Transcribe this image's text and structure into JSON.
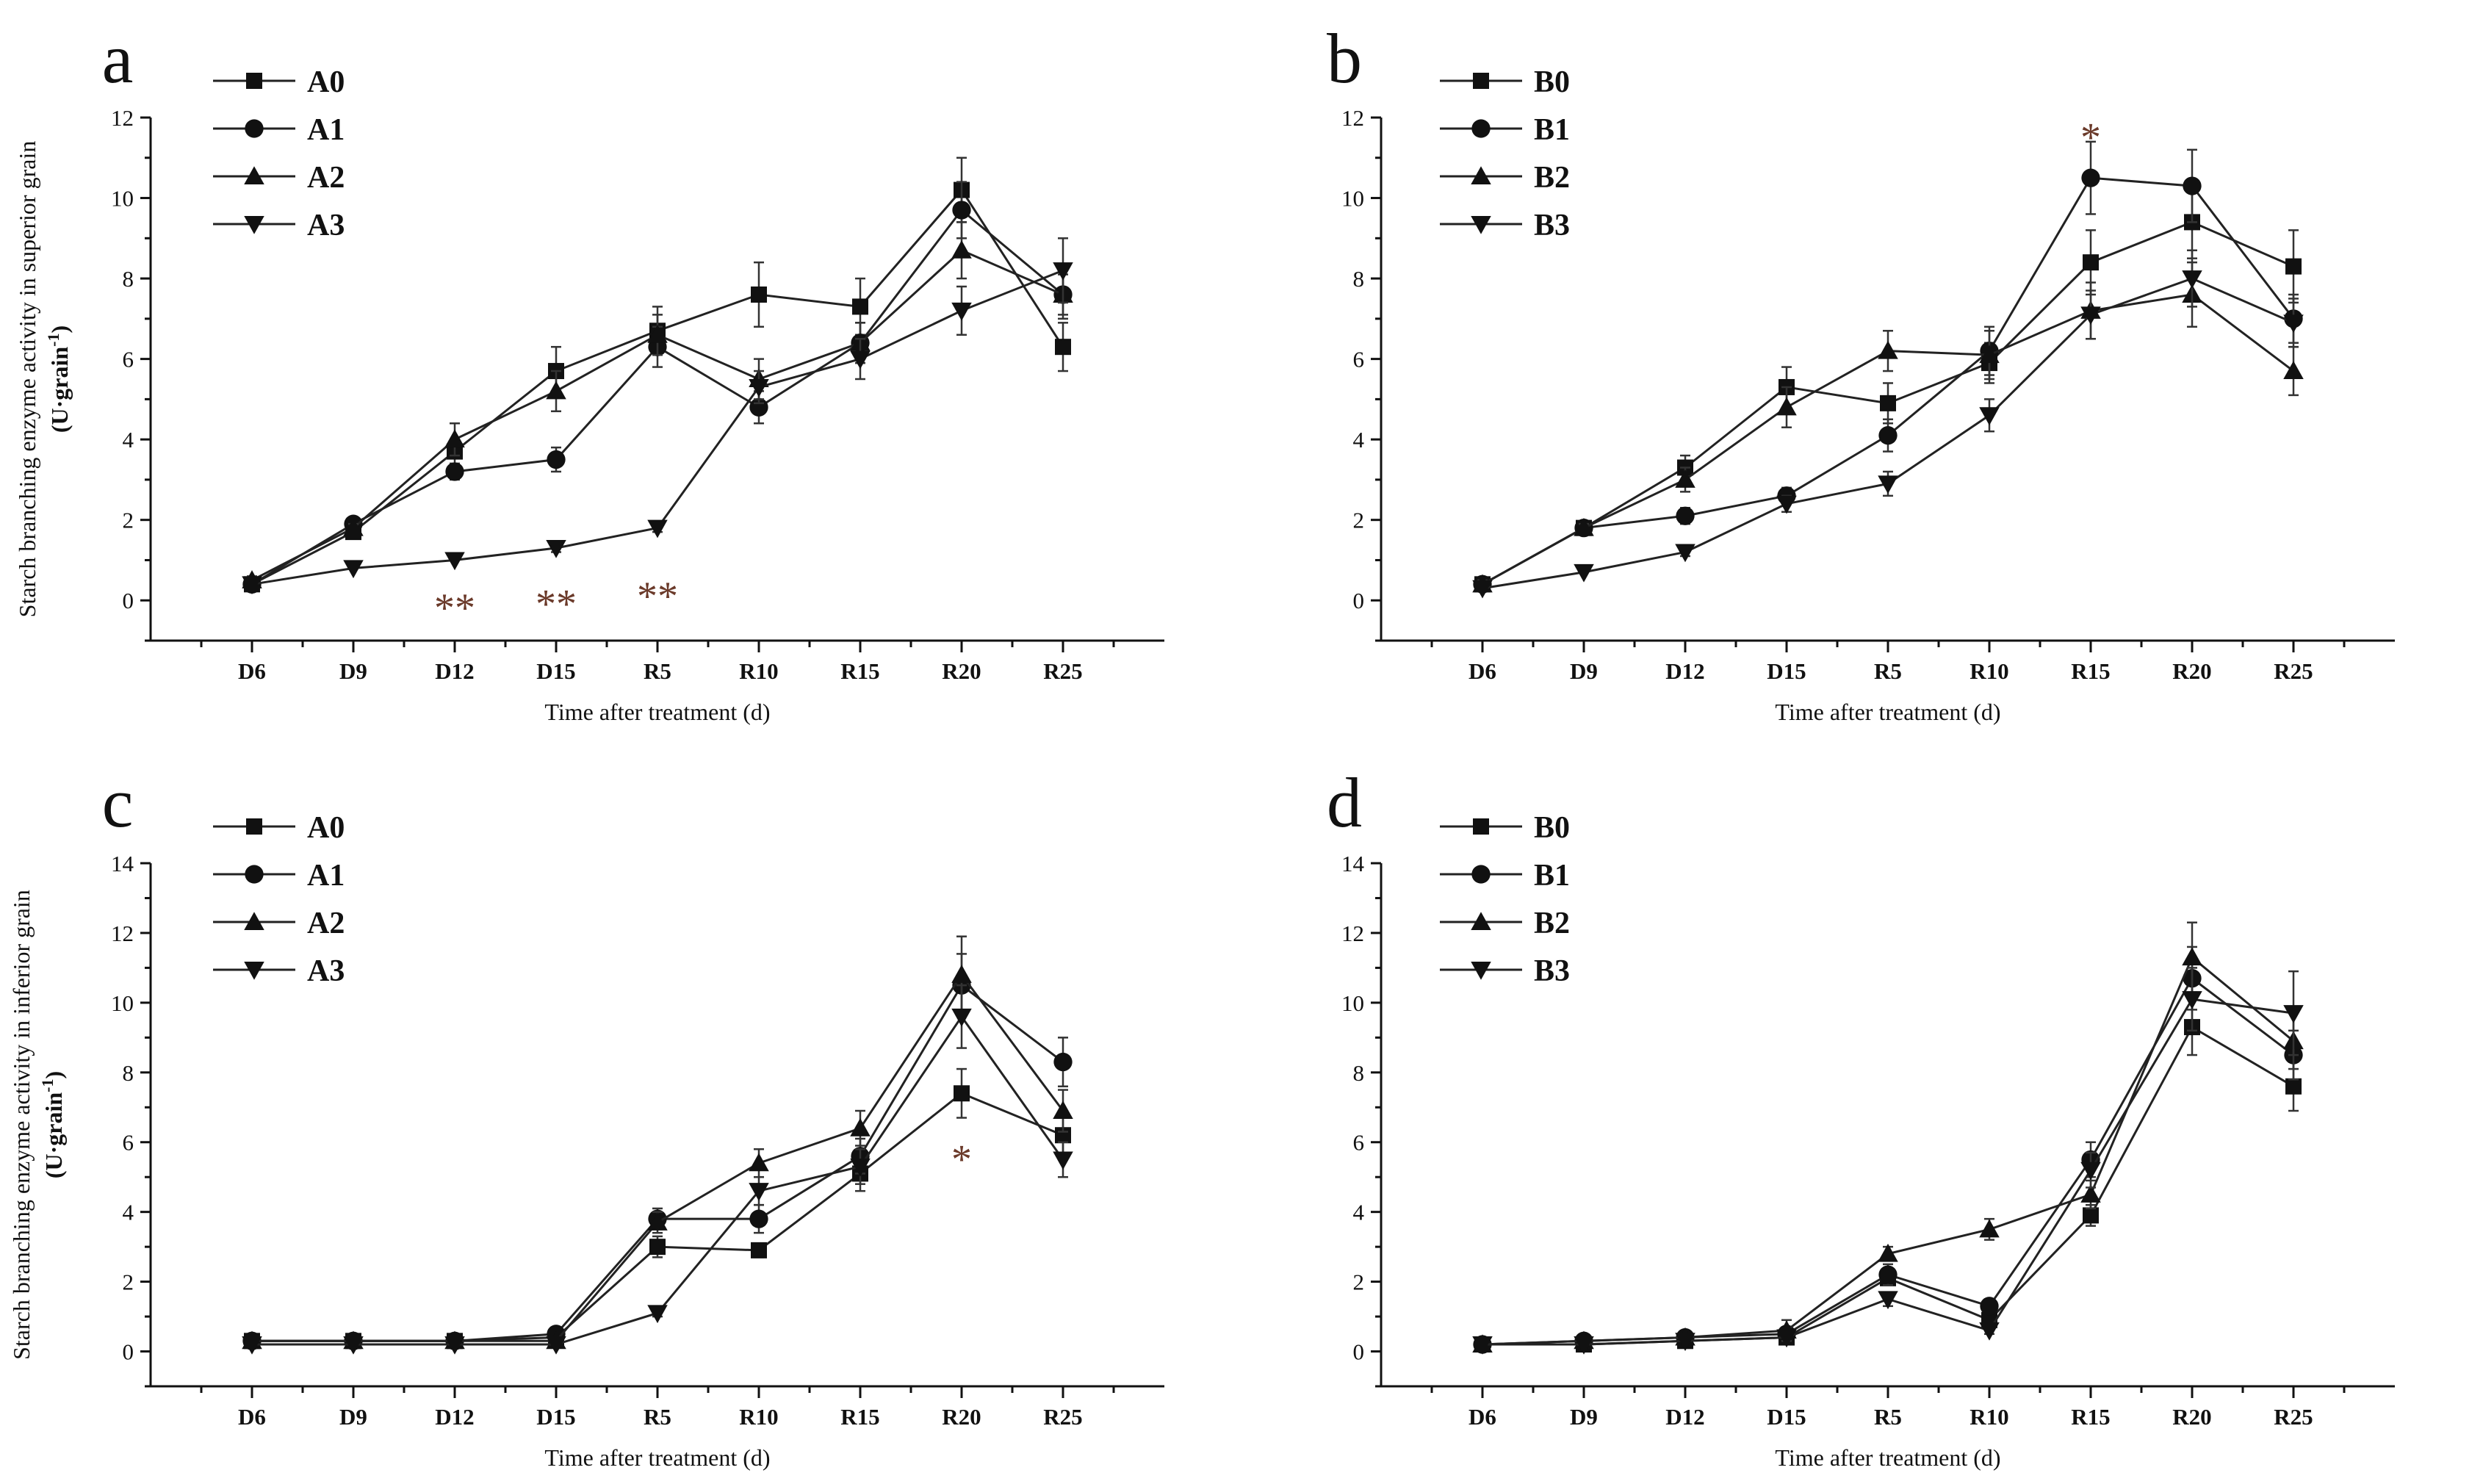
{
  "chart_data": [
    {
      "panel": "a",
      "type": "line",
      "categories": [
        "D6",
        "D9",
        "D12",
        "D15",
        "R5",
        "R10",
        "R15",
        "R20",
        "R25"
      ],
      "ylabel_line1": "Starch branching enzyme activity in superior grain",
      "ylabel_line2": "(U·grain",
      "ylabel_sup": "-1",
      "ylabel_close": ")",
      "xlabel": "Time after treatment (d)",
      "ylim": [
        -1,
        12
      ],
      "yticks": [
        "0",
        "2",
        "4",
        "6",
        "8",
        "10",
        "12"
      ],
      "series": [
        {
          "name": "A0",
          "marker": "square",
          "values": [
            0.4,
            1.7,
            3.7,
            5.7,
            6.7,
            7.6,
            7.3,
            10.2,
            6.3
          ],
          "errors": [
            0.1,
            0.1,
            0.3,
            0.6,
            0.6,
            0.8,
            0.7,
            0.8,
            0.6
          ]
        },
        {
          "name": "A1",
          "marker": "circle",
          "values": [
            0.4,
            1.9,
            3.2,
            3.5,
            6.3,
            4.8,
            6.4,
            9.7,
            7.6
          ],
          "errors": [
            0.1,
            0.1,
            0.2,
            0.3,
            0.5,
            0.4,
            0.5,
            0.7,
            0.5
          ]
        },
        {
          "name": "A2",
          "marker": "triangle-up",
          "values": [
            0.5,
            1.8,
            4.0,
            5.2,
            6.6,
            5.5,
            6.4,
            8.7,
            7.6
          ],
          "errors": [
            0.1,
            0.1,
            0.4,
            0.5,
            0.5,
            0.5,
            0.5,
            0.7,
            0.6
          ]
        },
        {
          "name": "A3",
          "marker": "triangle-down",
          "values": [
            0.4,
            0.8,
            1.0,
            1.3,
            1.8,
            5.3,
            6.0,
            7.2,
            8.2
          ],
          "errors": [
            0.05,
            0.05,
            0.05,
            0.1,
            0.1,
            0.4,
            0.5,
            0.6,
            0.8
          ]
        }
      ],
      "annotations": [
        {
          "text": "**",
          "x": "D12",
          "y": -0.2
        },
        {
          "text": "**",
          "x": "D15",
          "y": -0.1
        },
        {
          "text": "**",
          "x": "R5",
          "y": 0.1
        }
      ]
    },
    {
      "panel": "b",
      "type": "line",
      "categories": [
        "D6",
        "D9",
        "D12",
        "D15",
        "R5",
        "R10",
        "R15",
        "R20",
        "R25"
      ],
      "ylabel_line1": "",
      "ylabel_line2": "",
      "ylabel_sup": "",
      "ylabel_close": "",
      "xlabel": "Time after treatment (d)",
      "ylim": [
        -1,
        12
      ],
      "yticks": [
        "0",
        "2",
        "4",
        "6",
        "8",
        "10",
        "12"
      ],
      "series": [
        {
          "name": "B0",
          "marker": "square",
          "values": [
            0.4,
            1.8,
            3.3,
            5.3,
            4.9,
            5.9,
            8.4,
            9.4,
            8.3
          ],
          "errors": [
            0.1,
            0.1,
            0.3,
            0.5,
            0.5,
            0.5,
            0.8,
            0.9,
            0.9
          ]
        },
        {
          "name": "B1",
          "marker": "circle",
          "values": [
            0.4,
            1.8,
            2.1,
            2.6,
            4.1,
            6.2,
            10.5,
            10.3,
            7.0
          ],
          "errors": [
            0.1,
            0.1,
            0.2,
            0.2,
            0.4,
            0.6,
            0.9,
            0.9,
            0.6
          ]
        },
        {
          "name": "B2",
          "marker": "triangle-up",
          "values": [
            0.4,
            1.8,
            3.0,
            4.8,
            6.2,
            6.1,
            7.2,
            7.6,
            5.7
          ],
          "errors": [
            0.1,
            0.1,
            0.3,
            0.5,
            0.5,
            0.6,
            0.7,
            0.8,
            0.6
          ]
        },
        {
          "name": "B3",
          "marker": "triangle-down",
          "values": [
            0.3,
            0.7,
            1.2,
            2.4,
            2.9,
            4.6,
            7.1,
            8.0,
            6.9
          ],
          "errors": [
            0.05,
            0.05,
            0.1,
            0.2,
            0.3,
            0.4,
            0.6,
            0.7,
            0.6
          ]
        }
      ],
      "annotations": [
        {
          "text": "*",
          "x": "R15",
          "y": 11.5
        }
      ]
    },
    {
      "panel": "c",
      "type": "line",
      "categories": [
        "D6",
        "D9",
        "D12",
        "D15",
        "R5",
        "R10",
        "R15",
        "R20",
        "R25"
      ],
      "ylabel_line1": "Starch branching enzyme activity in inferior grain",
      "ylabel_line2": "(U·grain",
      "ylabel_sup": "-1",
      "ylabel_close": ")",
      "xlabel": "Time after treatment (d)",
      "ylim": [
        -1,
        14
      ],
      "yticks": [
        "0",
        "2",
        "4",
        "6",
        "8",
        "10",
        "12",
        "14"
      ],
      "series": [
        {
          "name": "A0",
          "marker": "square",
          "values": [
            0.3,
            0.3,
            0.3,
            0.4,
            3.0,
            2.9,
            5.1,
            7.4,
            6.2
          ],
          "errors": [
            0.05,
            0.05,
            0.05,
            0.1,
            0.3,
            0.2,
            0.5,
            0.7,
            0.5
          ]
        },
        {
          "name": "A1",
          "marker": "circle",
          "values": [
            0.3,
            0.3,
            0.3,
            0.5,
            3.8,
            3.8,
            5.6,
            10.5,
            8.3
          ],
          "errors": [
            0.05,
            0.05,
            0.05,
            0.1,
            0.3,
            0.4,
            0.5,
            0.9,
            0.7
          ]
        },
        {
          "name": "A2",
          "marker": "triangle-up",
          "values": [
            0.3,
            0.3,
            0.3,
            0.3,
            3.7,
            5.4,
            6.4,
            10.8,
            6.9
          ],
          "errors": [
            0.05,
            0.05,
            0.05,
            0.1,
            0.3,
            0.4,
            0.5,
            1.1,
            0.6
          ]
        },
        {
          "name": "A3",
          "marker": "triangle-down",
          "values": [
            0.2,
            0.2,
            0.2,
            0.2,
            1.1,
            4.6,
            5.3,
            9.6,
            5.5
          ],
          "errors": [
            0.05,
            0.05,
            0.05,
            0.05,
            0.1,
            0.4,
            0.5,
            0.9,
            0.5
          ]
        }
      ],
      "annotations": [
        {
          "text": "*",
          "x": "R20",
          "y": 5.5
        }
      ]
    },
    {
      "panel": "d",
      "type": "line",
      "categories": [
        "D6",
        "D9",
        "D12",
        "D15",
        "R5",
        "R10",
        "R15",
        "R20",
        "R25"
      ],
      "ylabel_line1": "",
      "ylabel_line2": "",
      "ylabel_sup": "",
      "ylabel_close": "",
      "xlabel": "Time after treatment (d)",
      "ylim": [
        -1,
        14
      ],
      "yticks": [
        "0",
        "2",
        "4",
        "6",
        "8",
        "10",
        "12",
        "14"
      ],
      "series": [
        {
          "name": "B0",
          "marker": "square",
          "values": [
            0.2,
            0.2,
            0.3,
            0.4,
            2.1,
            0.9,
            3.9,
            9.3,
            7.6
          ],
          "errors": [
            0.05,
            0.05,
            0.05,
            0.1,
            0.2,
            0.1,
            0.3,
            0.8,
            0.7
          ]
        },
        {
          "name": "B1",
          "marker": "circle",
          "values": [
            0.2,
            0.3,
            0.4,
            0.5,
            2.2,
            1.3,
            5.5,
            10.7,
            8.5
          ],
          "errors": [
            0.05,
            0.05,
            0.1,
            0.2,
            0.3,
            0.2,
            0.5,
            0.9,
            0.7
          ]
        },
        {
          "name": "B2",
          "marker": "triangle-up",
          "values": [
            0.2,
            0.3,
            0.4,
            0.6,
            2.8,
            3.5,
            4.5,
            11.3,
            8.9
          ],
          "errors": [
            0.05,
            0.05,
            0.1,
            0.3,
            0.2,
            0.3,
            0.4,
            1.0,
            0.8
          ]
        },
        {
          "name": "B3",
          "marker": "triangle-down",
          "values": [
            0.2,
            0.2,
            0.3,
            0.4,
            1.5,
            0.6,
            5.2,
            10.1,
            9.7
          ],
          "errors": [
            0.05,
            0.05,
            0.05,
            0.1,
            0.2,
            0.1,
            0.5,
            0.9,
            1.2
          ]
        }
      ],
      "annotations": []
    }
  ]
}
